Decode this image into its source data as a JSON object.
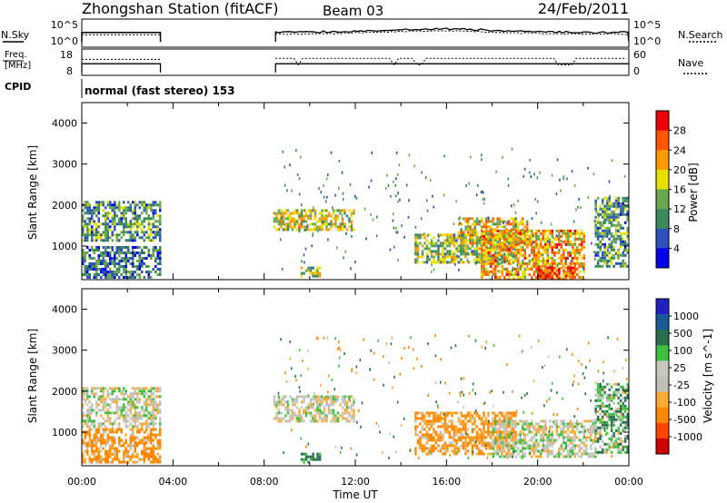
{
  "header": {
    "station": "Zhongshan Station (fitACF)",
    "beam": "Beam 03",
    "date": "24/Feb/2011"
  },
  "time_axis": {
    "label": "Time UT",
    "ticks": [
      "00:00",
      "04:00",
      "08:00",
      "12:00",
      "16:00",
      "20:00",
      "00:00"
    ]
  },
  "noise_panel": {
    "left_label": "N.Sky",
    "right_label": "N.Search",
    "left_ticks": [
      "10^5",
      "10^0"
    ],
    "right_ticks": [
      "10^5",
      "10^0"
    ]
  },
  "freq_panel": {
    "left_label_top": "Freq.",
    "left_label_bottom": "[MHz]",
    "right_label": "Nave",
    "left_ticks": [
      "18",
      "8"
    ],
    "right_ticks": [
      "60",
      "0"
    ]
  },
  "cpid": {
    "label": "CPID",
    "text": "normal (fast stereo) 153"
  },
  "colors": {
    "power": [
      "#0000ee",
      "#2a52b8",
      "#3a8a5a",
      "#6aa84f",
      "#e8e000",
      "#ff9900",
      "#ff5500",
      "#ee0000"
    ],
    "velocity": [
      "#d00000",
      "#ff4400",
      "#ff8800",
      "#ffaa33",
      "#c0c0b8",
      "#c8c8c0",
      "#40c040",
      "#2a7050",
      "#1a5a9a",
      "#2020c0"
    ]
  },
  "chart_data": [
    {
      "type": "heatmap",
      "title": "Power",
      "ylabel": "Slant Range [km]",
      "xlabel": "",
      "x_range_hours": [
        0,
        24
      ],
      "ylim": [
        180,
        4500
      ],
      "y_ticks": [
        "1000",
        "2000",
        "3000",
        "4000"
      ],
      "colorbar": {
        "label": "Power [dB]",
        "unit": "dB",
        "ticks": [
          "28",
          "24",
          "20",
          "16",
          "12",
          "8",
          "4"
        ],
        "range": [
          0,
          30
        ]
      },
      "regions": [
        {
          "t": [
            0.0,
            3.4
          ],
          "r": [
            1150,
            2100
          ],
          "value": 10
        },
        {
          "t": [
            0.0,
            3.4
          ],
          "r": [
            250,
            1000
          ],
          "value": 8
        },
        {
          "t": [
            8.4,
            11.9
          ],
          "r": [
            1400,
            1900
          ],
          "value": 16
        },
        {
          "t": [
            9.6,
            10.4
          ],
          "r": [
            300,
            500
          ],
          "value": 14
        },
        {
          "t": [
            14.6,
            19.0
          ],
          "r": [
            600,
            1300
          ],
          "value": 14
        },
        {
          "t": [
            16.5,
            19.5
          ],
          "r": [
            1100,
            1700
          ],
          "value": 18
        },
        {
          "t": [
            17.5,
            22.0
          ],
          "r": [
            200,
            1400
          ],
          "value": 20
        },
        {
          "t": [
            20.0,
            21.5
          ],
          "r": [
            180,
            500
          ],
          "value": 26
        },
        {
          "t": [
            22.5,
            24.0
          ],
          "r": [
            500,
            2200
          ],
          "value": 10
        }
      ]
    },
    {
      "type": "heatmap",
      "title": "Velocity",
      "ylabel": "Slant Range [km]",
      "xlabel": "Time UT",
      "x_range_hours": [
        0,
        24
      ],
      "ylim": [
        180,
        4500
      ],
      "y_ticks": [
        "1000",
        "2000",
        "3000",
        "4000"
      ],
      "colorbar": {
        "label": "Velocity [m s^-1]",
        "unit": "m s-1",
        "ticks": [
          "1000",
          "500",
          "100",
          "25",
          "-25",
          "-100",
          "-500",
          "-1000"
        ],
        "range": [
          -1000,
          1000
        ]
      },
      "regions": [
        {
          "t": [
            0.0,
            3.4
          ],
          "r": [
            1150,
            2100
          ],
          "value": 0
        },
        {
          "t": [
            0.0,
            3.4
          ],
          "r": [
            250,
            1100
          ],
          "value": -150
        },
        {
          "t": [
            8.4,
            11.9
          ],
          "r": [
            1300,
            1900
          ],
          "value": 0
        },
        {
          "t": [
            9.6,
            10.4
          ],
          "r": [
            300,
            500
          ],
          "value": 150
        },
        {
          "t": [
            14.6,
            19.0
          ],
          "r": [
            500,
            1500
          ],
          "value": -150
        },
        {
          "t": [
            18.0,
            22.5
          ],
          "r": [
            400,
            1300
          ],
          "value": 0
        },
        {
          "t": [
            22.5,
            24.0
          ],
          "r": [
            500,
            2200
          ],
          "value": 80
        }
      ]
    }
  ]
}
